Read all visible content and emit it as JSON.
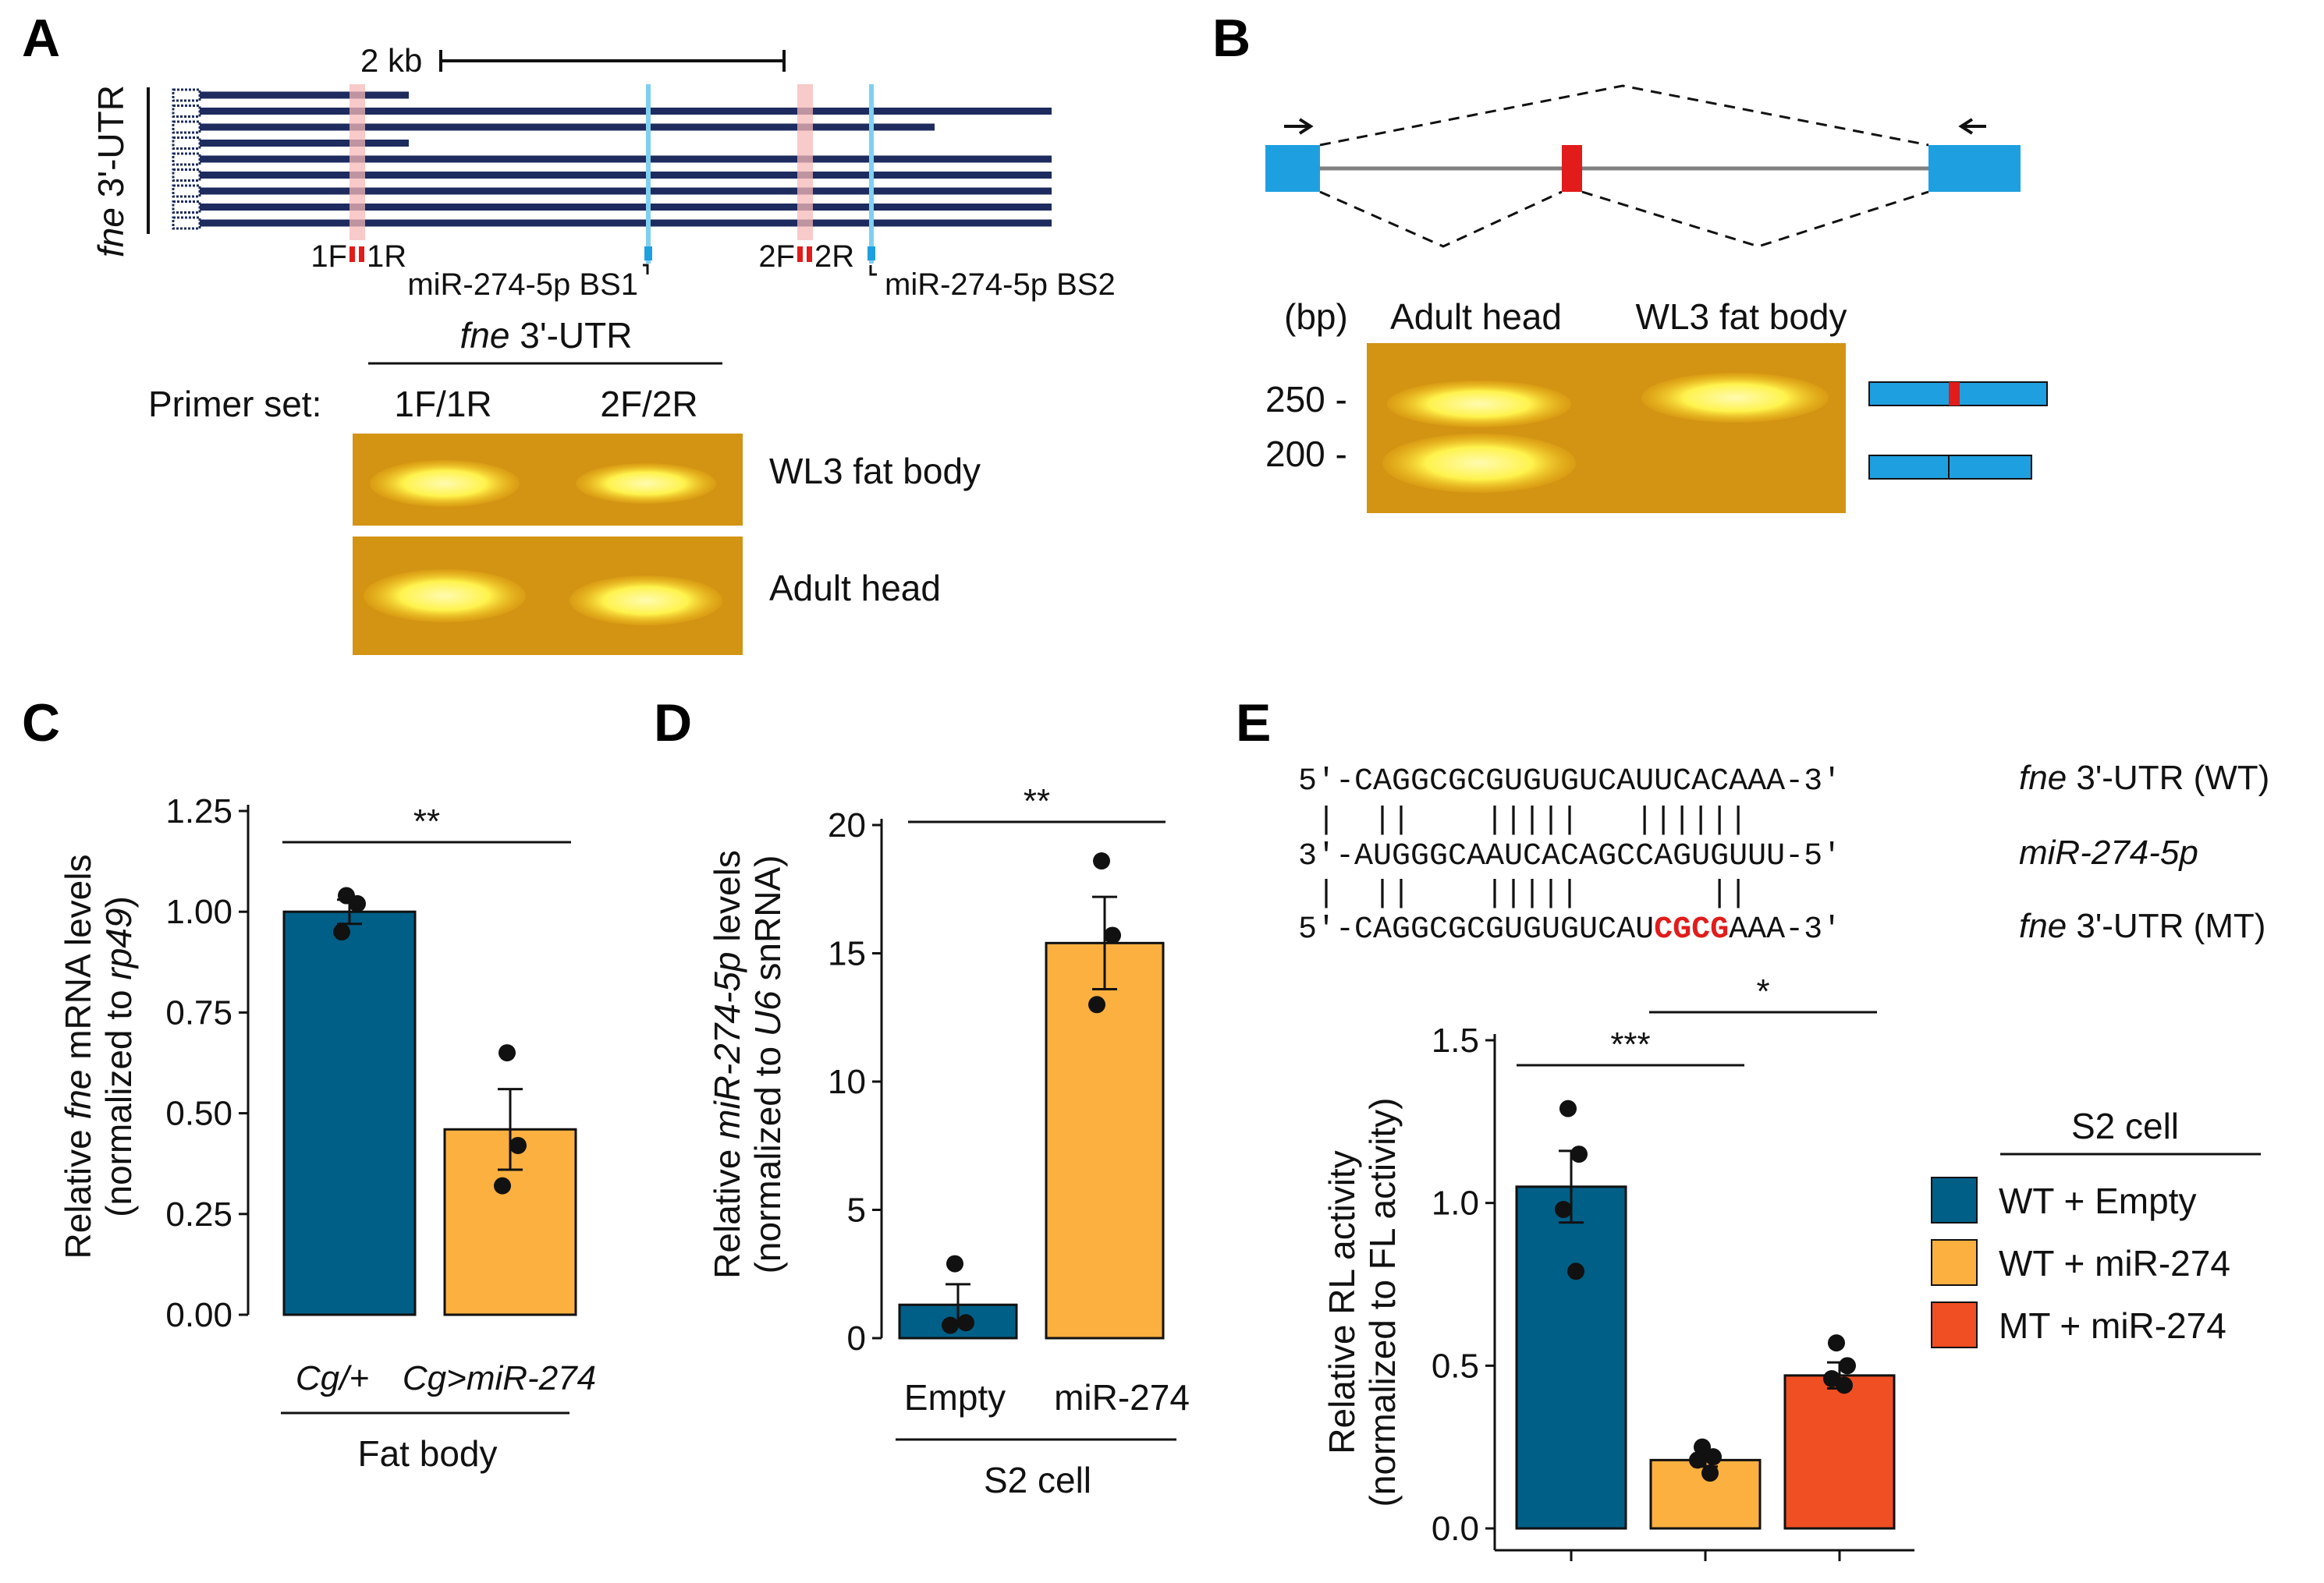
{
  "panels": {
    "A": {
      "label": "A",
      "gene_label_italic": "fne",
      "gene_label_rest": " 3'-UTR",
      "scale_label": "2 kb",
      "primer_marks": [
        "1F",
        "1R",
        "2F",
        "2R"
      ],
      "bs1_label": "miR-274-5p BS1",
      "bs2_label": "miR-274-5p BS2",
      "gel_header_italic": "fne",
      "gel_header_rest": " 3'-UTR",
      "primer_set_label": "Primer set:",
      "lane_labels": [
        "1F/1R",
        "2F/2R"
      ],
      "tissue_labels": [
        "WL3 fat body",
        "Adult head"
      ]
    },
    "B": {
      "label": "B",
      "bp_label": "(bp)",
      "lane_labels": [
        "Adult head",
        "WL3 fat body"
      ],
      "size_markers": [
        "250 -",
        "200 -"
      ]
    },
    "C": {
      "label": "C"
    },
    "D": {
      "label": "D"
    },
    "E": {
      "label": "E",
      "seq_rows": [
        {
          "seq": "5'-CAGGCGCGUGUGUCAUUCACAAA-3'",
          "name_italic": "fne",
          "name_rest": " 3'-UTR (WT)"
        },
        {
          "seq": "3'-AUGGGCAAUCACAGCCAGUGUUU-5'",
          "name_italic": "miR-274-5p",
          "name_rest": ""
        },
        {
          "seq_pre": "5'-CAGGCGCGUGUGUCAU",
          "seq_mut": "CGCG",
          "seq_post": "AAA-3'",
          "name_italic": "fne",
          "name_rest": " 3'-UTR (MT)"
        }
      ],
      "pairing_top": " |  ||    |||||   ||||||",
      "pairing_bottom": " |  ||    |||||       ||"
    }
  },
  "colors": {
    "teal": "#005f87",
    "orange": "#fbb040",
    "red": "#f04e23",
    "navy": "#1d2b5e",
    "blue": "#1ea0e0",
    "gel": "#d4920e",
    "band": "#fff34d"
  },
  "chart_data": [
    {
      "id": "C",
      "type": "bar",
      "categories_italic": [
        "Cg/+",
        "Cg>miR-274"
      ],
      "group_label": "Fat body",
      "ylabel_line1_pre": "Relative ",
      "ylabel_line1_italic": "fne",
      "ylabel_line1_post": " mRNA levels",
      "ylabel_line2_pre": "(normalized to ",
      "ylabel_line2_italic": "rp49",
      "ylabel_line2_post": ")",
      "ylim": [
        0,
        1.25
      ],
      "yticks": [
        0,
        0.25,
        0.5,
        0.75,
        1.0,
        1.25
      ],
      "ytick_labels": [
        "0.00",
        "0.25",
        "0.50",
        "0.75",
        "1.00",
        "1.25"
      ],
      "values": [
        1.0,
        0.46
      ],
      "errors": [
        0.03,
        0.1
      ],
      "points": [
        [
          1.04,
          1.02,
          0.95
        ],
        [
          0.65,
          0.42,
          0.32
        ]
      ],
      "significance": [
        {
          "from": 0,
          "to": 1,
          "label": "**"
        }
      ]
    },
    {
      "id": "D",
      "type": "bar",
      "categories": [
        "Empty",
        "miR-274"
      ],
      "group_label": "S2 cell",
      "ylabel_line1_pre": "Relative ",
      "ylabel_line1_italic": "miR-274-5p",
      "ylabel_line1_post": " levels",
      "ylabel_line2_pre": "(normalized to ",
      "ylabel_line2_italic": "U6",
      "ylabel_line2_post": " snRNA)",
      "ylim": [
        0,
        20
      ],
      "yticks": [
        0,
        5,
        10,
        15,
        20
      ],
      "ytick_labels": [
        "0",
        "5",
        "10",
        "15",
        "20"
      ],
      "values": [
        1.3,
        15.4
      ],
      "errors": [
        0.8,
        1.8
      ],
      "points": [
        [
          2.9,
          0.6,
          0.5
        ],
        [
          18.6,
          15.7,
          13.0
        ]
      ],
      "significance": [
        {
          "from": 0,
          "to": 1,
          "label": "**"
        }
      ]
    },
    {
      "id": "E",
      "type": "bar",
      "categories": [
        "WT + Empty",
        "WT + miR-274",
        "MT + miR-274"
      ],
      "legend_title": "S2 cell",
      "ylabel_line1": "Relative RL activity",
      "ylabel_line2": "(normalized to FL activity)",
      "ylim": [
        0,
        1.5
      ],
      "yticks": [
        0,
        0.5,
        1.0,
        1.5
      ],
      "ytick_labels": [
        "0.0",
        "0.5",
        "1.0",
        "1.5"
      ],
      "values": [
        1.05,
        0.21,
        0.47
      ],
      "errors": [
        0.11,
        0.02,
        0.04
      ],
      "points": [
        [
          1.29,
          1.15,
          0.98,
          0.79
        ],
        [
          0.25,
          0.22,
          0.21,
          0.17
        ],
        [
          0.57,
          0.5,
          0.46,
          0.44
        ]
      ],
      "significance": [
        {
          "from": 0,
          "to": 1,
          "label": "***"
        },
        {
          "from": 1,
          "to": 2,
          "label": "*"
        }
      ]
    }
  ]
}
